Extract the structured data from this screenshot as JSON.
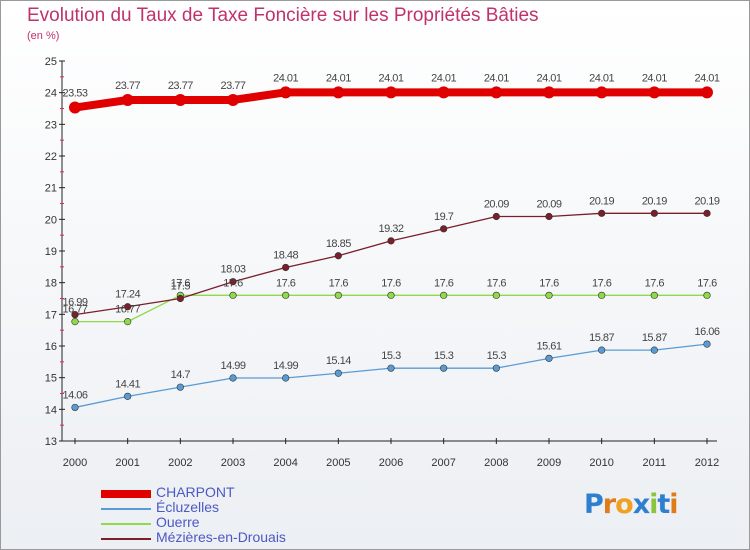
{
  "title": "Evolution du Taux de Taxe Foncière sur les Propriétés Bâties",
  "unit": "(en %)",
  "brand": "Proxiti",
  "chart_data": {
    "type": "line",
    "x": [
      "2000",
      "2001",
      "2002",
      "2003",
      "2004",
      "2005",
      "2006",
      "2007",
      "2008",
      "2009",
      "2010",
      "2011",
      "2012"
    ],
    "ylim": [
      13,
      25
    ],
    "yticks": [
      13,
      14,
      15,
      16,
      17,
      18,
      19,
      20,
      21,
      22,
      23,
      24,
      25
    ],
    "grid": false,
    "legend_position": "bottom-left",
    "series": [
      {
        "name": "CHARPONT",
        "color": "#e00000",
        "values": [
          23.53,
          23.77,
          23.77,
          23.77,
          24.01,
          24.01,
          24.01,
          24.01,
          24.01,
          24.01,
          24.01,
          24.01,
          24.01
        ],
        "labels": [
          "23.53",
          "23.77",
          "23.77",
          "23.77",
          "24.01",
          "24.01",
          "24.01",
          "24.01",
          "24.01",
          "24.01",
          "24.01",
          "24.01",
          "24.01"
        ]
      },
      {
        "name": "Écluzelles",
        "color": "#5b9bd5",
        "values": [
          14.06,
          14.41,
          14.7,
          14.99,
          14.99,
          15.14,
          15.3,
          15.3,
          15.3,
          15.61,
          15.87,
          15.87,
          16.06
        ],
        "labels": [
          "14.06",
          "14.41",
          "14.7",
          "14.99",
          "14.99",
          "15.14",
          "15.3",
          "15.3",
          "15.3",
          "15.61",
          "15.87",
          "15.87",
          "16.06"
        ]
      },
      {
        "name": "Ouerre",
        "color": "#8fd94a",
        "values": [
          16.77,
          16.77,
          17.6,
          17.6,
          17.6,
          17.6,
          17.6,
          17.6,
          17.6,
          17.6,
          17.6,
          17.6,
          17.6
        ],
        "labels": [
          "16.77",
          "16.77",
          "17.6",
          "17.6",
          "17.6",
          "17.6",
          "17.6",
          "17.6",
          "17.6",
          "17.6",
          "17.6",
          "17.6",
          "17.6"
        ]
      },
      {
        "name": "Mézières-en-Drouais",
        "color": "#7a1f2b",
        "values": [
          16.99,
          17.24,
          17.5,
          18.03,
          18.48,
          18.85,
          19.32,
          19.7,
          20.09,
          20.09,
          20.19,
          20.19,
          20.19
        ],
        "labels": [
          "16.99",
          "17.24",
          "17.5",
          "18.03",
          "18.48",
          "18.85",
          "19.32",
          "19.7",
          "20.09",
          "20.09",
          "20.19",
          "20.19",
          "20.19"
        ]
      }
    ]
  }
}
